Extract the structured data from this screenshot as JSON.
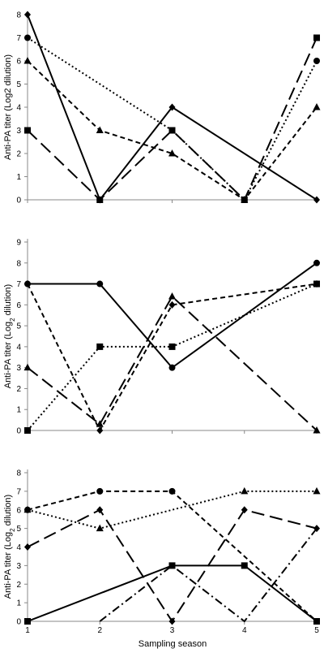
{
  "figure": {
    "xlabel": "Sampling season"
  },
  "chart_data": [
    {
      "type": "line",
      "ylabel": "Anti-PA titer (Log2 dilution)",
      "ylabel_parts": {
        "pre": "",
        "sub": "",
        "post": "Anti-PA titer (Log2 dilution)"
      },
      "x": [
        1,
        2,
        3,
        4,
        5
      ],
      "ylim": [
        0,
        8
      ],
      "yticks": [
        0,
        1,
        2,
        3,
        4,
        5,
        6,
        7,
        8
      ],
      "series": [
        {
          "marker": "diamond",
          "dash": "solid",
          "values": [
            8,
            0,
            4,
            null,
            0
          ]
        },
        {
          "marker": "circle",
          "dash": "dotted",
          "values": [
            7,
            null,
            3,
            0,
            6
          ]
        },
        {
          "marker": "triangle",
          "dash": "short-dash",
          "values": [
            6,
            3,
            2,
            0,
            4
          ]
        },
        {
          "marker": "square",
          "dash": "long-dash",
          "values": [
            3,
            0,
            3,
            0,
            7
          ]
        }
      ]
    },
    {
      "type": "line",
      "ylabel": "Anti-PA titer (Log2 dilution)",
      "ylabel_parts": {
        "pre": "Anti-PA titer (Log",
        "sub": "2",
        "post": " dilution)"
      },
      "x": [
        1,
        2,
        3,
        4,
        5
      ],
      "ylim": [
        0,
        9
      ],
      "yticks": [
        0,
        1,
        2,
        3,
        4,
        5,
        6,
        7,
        8,
        9
      ],
      "series": [
        {
          "marker": "circle",
          "dash": "solid",
          "values": [
            7,
            7,
            3,
            null,
            8
          ]
        },
        {
          "marker": "diamond",
          "dash": "short-dash",
          "values": [
            7,
            0,
            6,
            null,
            7
          ]
        },
        {
          "marker": "square",
          "dash": "dotted",
          "values": [
            0,
            4,
            4,
            null,
            7
          ]
        },
        {
          "marker": "triangle",
          "dash": "long-dash",
          "values": [
            3,
            0.3,
            6.4,
            null,
            0
          ]
        }
      ]
    },
    {
      "type": "line",
      "ylabel": "Anti-PA titer (Log2 dilution)",
      "ylabel_parts": {
        "pre": "Anti-PA titer (Log",
        "sub": "2",
        "post": " dilution)"
      },
      "x": [
        1,
        2,
        3,
        4,
        5
      ],
      "xticks": [
        "1",
        "2",
        "3",
        "4",
        "5"
      ],
      "ylim": [
        0,
        8
      ],
      "yticks": [
        0,
        1,
        2,
        3,
        4,
        5,
        6,
        7,
        8
      ],
      "series": [
        {
          "marker": "circle",
          "dash": "short-dash",
          "values": [
            6,
            7,
            7,
            null,
            0
          ]
        },
        {
          "marker": "triangle",
          "dash": "dotted",
          "values": [
            6,
            5,
            null,
            7,
            7
          ]
        },
        {
          "marker": "diamond",
          "dash": "long-dash",
          "values": [
            4,
            6,
            0,
            6,
            5
          ]
        },
        {
          "marker": "square",
          "dash": "solid",
          "values": [
            0,
            null,
            3,
            3,
            0
          ]
        },
        {
          "marker": "none",
          "dash": "dash-dot",
          "values": [
            null,
            0,
            3,
            0,
            5
          ]
        }
      ]
    }
  ]
}
